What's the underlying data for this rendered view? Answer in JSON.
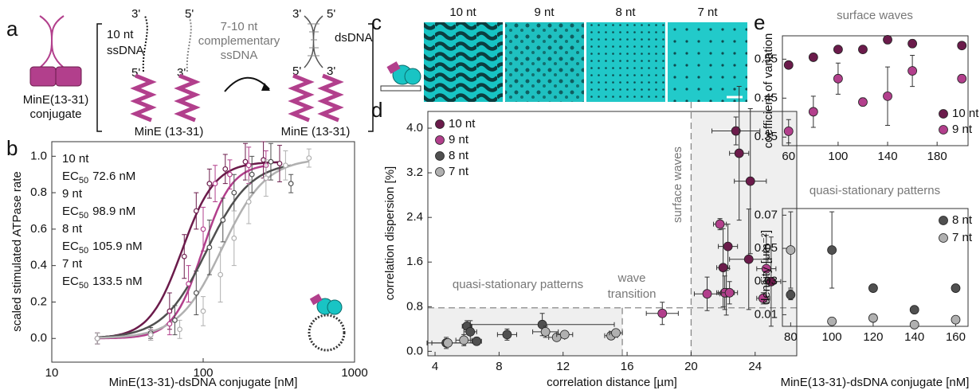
{
  "panel_labels": [
    "a",
    "b",
    "c",
    "d",
    "e"
  ],
  "schematic": {
    "conjugate_name": "MinE(13-31)",
    "conjugate_word": "conjugate",
    "ssdna_length": "10 nt",
    "ssdna": "ssDNA",
    "prime3": "3'",
    "prime5": "5'",
    "complement_length": "7-10 nt",
    "complement_word": "complementary",
    "complement_ssdna": "ssDNA",
    "dsdna": "dsDNA",
    "mine_label": "MinE (13-31)"
  },
  "micrographs": {
    "labels": [
      "10 nt",
      "9 nt",
      "8 nt",
      "7 nt"
    ]
  },
  "chart_data": [
    {
      "type": "scatter",
      "xlog": true,
      "xlabel": "MinE(13-31)-dsDNA conjugate [nM]",
      "ylabel": "scaled stimulated ATPase rate",
      "xlim": [
        10,
        1000
      ],
      "ylim": [
        -0.13,
        1.08
      ],
      "xticks": [
        10,
        100,
        1000
      ],
      "yticks": [
        {
          "value": 0,
          "label": "0.0"
        },
        0.2,
        0.4,
        0.6,
        0.8,
        {
          "value": 1,
          "label": "1.0"
        }
      ],
      "ec_label": "EC",
      "ec_sub": "50",
      "series": [
        {
          "name": "10 nt",
          "color": "#6b1b4b",
          "ec50": 72.6,
          "ec50_label": "72.6 nM",
          "hill": 4,
          "top": 0.97,
          "x": [
            20,
            45,
            60,
            75,
            90,
            110,
            140,
            190,
            250,
            320
          ],
          "values": [
            0.0,
            0.02,
            0.15,
            0.45,
            0.7,
            0.85,
            0.93,
            0.97,
            0.98,
            0.96
          ],
          "errors": [
            0.03,
            0.03,
            0.1,
            0.12,
            0.1,
            0.08,
            0.08,
            0.1,
            0.1,
            0.1
          ]
        },
        {
          "name": "9 nt",
          "color": "#b23f8c",
          "ec50": 98.9,
          "ec50_label": "98.9 nM",
          "hill": 4.5,
          "top": 0.96,
          "x": [
            20,
            45,
            60,
            80,
            100,
            120,
            150,
            200,
            260
          ],
          "values": [
            0.0,
            0.02,
            0.08,
            0.3,
            0.6,
            0.85,
            0.9,
            0.95,
            0.95
          ],
          "errors": [
            0.03,
            0.03,
            0.06,
            0.1,
            0.12,
            0.1,
            0.08,
            0.1,
            0.08
          ]
        },
        {
          "name": "8 nt",
          "color": "#505050",
          "ec50": 105.9,
          "ec50_label": "105.9 nM",
          "hill": 3,
          "top": 0.97,
          "x": [
            20,
            45,
            65,
            90,
            110,
            135,
            160,
            210,
            280,
            380
          ],
          "values": [
            0.0,
            0.03,
            0.1,
            0.25,
            0.5,
            0.65,
            0.8,
            0.9,
            0.97,
            0.85
          ],
          "errors": [
            0.03,
            0.03,
            0.08,
            0.12,
            0.15,
            0.12,
            0.1,
            0.1,
            0.1,
            0.05
          ]
        },
        {
          "name": "7 nt",
          "color": "#b0b0b0",
          "ec50": 133.5,
          "ec50_label": "133.5 nM",
          "hill": 3,
          "top": 0.99,
          "x": [
            20,
            45,
            70,
            100,
            130,
            160,
            200,
            260,
            350,
            500
          ],
          "values": [
            0.0,
            0.02,
            0.05,
            0.15,
            0.35,
            0.55,
            0.75,
            0.88,
            0.95,
            0.99
          ],
          "errors": [
            0.03,
            0.03,
            0.05,
            0.08,
            0.15,
            0.15,
            0.12,
            0.1,
            0.08,
            0.05
          ]
        }
      ]
    },
    {
      "type": "scatter",
      "xlabel": "correlation distance [µm]",
      "ylabel": "correlation dispersion [%]",
      "xlim": [
        3.55,
        26.6
      ],
      "ylim": [
        -0.08,
        4.3
      ],
      "xticks": [
        4,
        8,
        12,
        16,
        20,
        24
      ],
      "yticks": [
        {
          "value": 0,
          "label": "0.0"
        },
        0.8,
        1.6,
        2.4,
        3.2,
        {
          "value": 4,
          "label": "4.0"
        }
      ],
      "thresholds": {
        "x_low": 15.7,
        "x_high": 20,
        "y": 0.78
      },
      "annotations": [
        "quasi-stationary patterns",
        "wave",
        "transition",
        "surface waves"
      ],
      "series": [
        {
          "name": "10 nt",
          "color": "#6b1b4b",
          "x": [
            22.8,
            23.0,
            23.7,
            22.3,
            23.6,
            22.0,
            22.2,
            25.0
          ],
          "values": [
            3.95,
            3.55,
            3.05,
            1.88,
            1.65,
            1.5,
            1.05,
            1.25
          ],
          "xerr": [
            1.5,
            0.6,
            1.0,
            0.6,
            1.2,
            0.4,
            0.5,
            0.6
          ],
          "errors": [
            0.25,
            1.2,
            1.3,
            0.4,
            0.9,
            0.7,
            0.4,
            0.8
          ]
        },
        {
          "name": "9 nt",
          "color": "#b23f8c",
          "x": [
            18.2,
            21.8,
            21.0,
            22.1,
            24.7,
            24.5,
            22.4
          ],
          "values": [
            0.68,
            2.28,
            1.03,
            1.05,
            1.48,
            0.95,
            1.05
          ],
          "xerr": [
            1.0,
            0.4,
            0.8,
            0.5,
            0.6,
            0.4,
            0.5
          ],
          "errors": [
            0.2,
            0.1,
            0.3,
            0.3,
            0.6,
            0.1,
            0.2
          ]
        },
        {
          "name": "8 nt",
          "color": "#505050",
          "x": [
            4.7,
            6.0,
            6.2,
            6.6,
            8.5,
            10.7
          ],
          "values": [
            0.15,
            0.45,
            0.35,
            0.18,
            0.3,
            0.48
          ],
          "xerr": [
            1.2,
            0.3,
            0.4,
            0.3,
            0.6,
            4.5
          ],
          "errors": [
            0.1,
            0.1,
            0.2,
            0.05,
            0.1,
            0.2
          ]
        },
        {
          "name": "7 nt",
          "color": "#b0b0b0",
          "x": [
            4.8,
            5.8,
            10.9,
            11.6,
            12.1,
            15.0,
            15.3
          ],
          "values": [
            0.15,
            0.2,
            0.35,
            0.25,
            0.3,
            0.28,
            0.33
          ],
          "xerr": [
            1.0,
            0.5,
            0.8,
            0.5,
            0.5,
            0.4,
            0.4
          ],
          "errors": [
            0.05,
            0.1,
            0.1,
            0.05,
            0.05,
            0.05,
            0.05
          ]
        }
      ]
    },
    {
      "type": "scatter",
      "title": "surface waves",
      "ylabel": "coefficient of variation",
      "xlim": [
        55,
        205
      ],
      "ylim": [
        0.328,
        0.61
      ],
      "xticks": [
        60,
        100,
        140,
        180
      ],
      "yticks": [
        0.35,
        0.45,
        0.55
      ],
      "series": [
        {
          "name": "10 nt",
          "color": "#6b1b4b",
          "x": [
            60,
            80,
            100,
            120,
            140,
            160,
            200
          ],
          "values": [
            0.535,
            0.555,
            0.575,
            0.575,
            0.6,
            0.59,
            0.585
          ],
          "errors": [
            0.005,
            0.005,
            0.005,
            0.005,
            0.01,
            0.01,
            0.005
          ]
        },
        {
          "name": "9 nt",
          "color": "#b23f8c",
          "x": [
            60,
            80,
            100,
            120,
            140,
            160,
            200
          ],
          "values": [
            0.365,
            0.415,
            0.5,
            0.44,
            0.455,
            0.52,
            0.5
          ],
          "errors": [
            0.03,
            0.04,
            0.04,
            0.01,
            0.075,
            0.04,
            0.01
          ]
        }
      ]
    },
    {
      "type": "scatter",
      "title": "quasi-stationary patterns",
      "ylabel": "density [μm⁻²]",
      "xlabel": "MinE(13-31)-dsDNA conjugate [nM]",
      "xlim": [
        76,
        166
      ],
      "ylim": [
        0.003,
        0.074
      ],
      "xticks": [
        80,
        100,
        120,
        140,
        160
      ],
      "yticks": [
        0.01,
        0.03,
        0.05,
        0.07
      ],
      "series": [
        {
          "name": "8 nt",
          "color": "#505050",
          "x": [
            80,
            100,
            120,
            140,
            160
          ],
          "values": [
            0.022,
            0.049,
            0.026,
            0.013,
            0.026
          ],
          "errors": [
            0.003,
            0.023,
            0,
            0,
            0
          ]
        },
        {
          "name": "7 nt",
          "color": "#b0b0b0",
          "x": [
            80,
            100,
            120,
            140,
            160
          ],
          "values": [
            0.049,
            0.006,
            0.008,
            0.004,
            0.007
          ],
          "errors": [
            0.023,
            0,
            0,
            0,
            0
          ]
        }
      ]
    }
  ]
}
